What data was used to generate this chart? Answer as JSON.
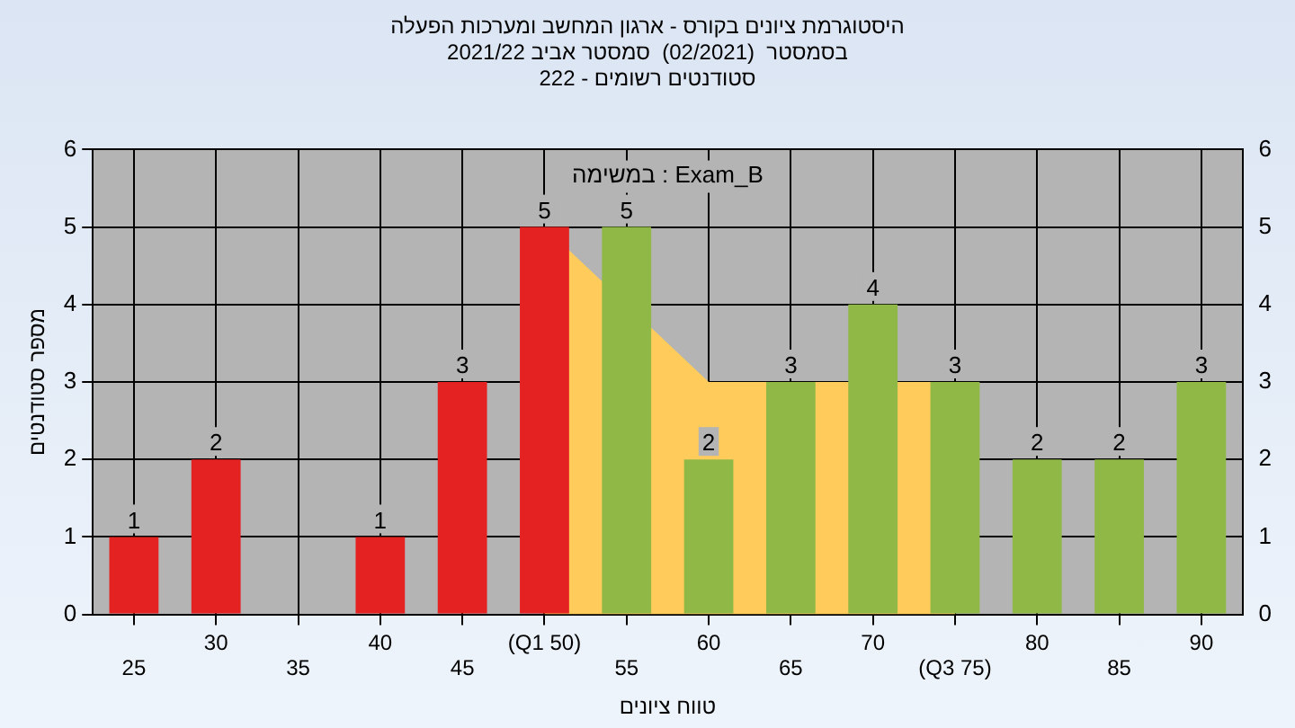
{
  "chart_data": {
    "type": "bar",
    "title": "היסטוגרמת ציונים בקורס - ארגון המחשב ומערכות הפעלה",
    "subtitle": "בסמסטר  (02/2021)  סמסטר אביב 2021/22\nסטודנטים רשומים - 222",
    "xlabel": "טווח ציונים",
    "ylabel": "מספר סטודנטים",
    "annotations": [
      "במשימה : Exam_B"
    ],
    "categories": [
      "25",
      "30",
      "35",
      "40",
      "45",
      "(Q1 50)",
      "55",
      "60",
      "65",
      "70",
      "(Q3 75)",
      "80",
      "85",
      "90"
    ],
    "series": [
      {
        "type": "area",
        "color": "#ffcc5c",
        "values": [
          null,
          null,
          null,
          null,
          null,
          5,
          null,
          3,
          3,
          null,
          3,
          null,
          null,
          null
        ]
      },
      {
        "colors": [
          "#e52222",
          "#e52222",
          "#e52222",
          "#e52222",
          "#e52222",
          "#e52222",
          "#8fb847",
          "#8fb847",
          "#8fb847",
          "#8fb847",
          "#8fb847",
          "#8fb847",
          "#8fb847",
          "#8fb847"
        ],
        "values": [
          1,
          2,
          0,
          1,
          3,
          5,
          5,
          2,
          3,
          4,
          3,
          2,
          2,
          3
        ],
        "value_labels": [
          "1",
          "2",
          null,
          "1",
          "3",
          "5",
          "5",
          "2",
          "3",
          "4",
          "3",
          "2",
          "2",
          "3"
        ]
      }
    ],
    "ylim": [
      0,
      6
    ],
    "yticks": [
      0,
      1,
      2,
      3,
      4,
      5,
      6
    ],
    "y2lim": [
      0,
      6
    ],
    "y2ticks": [
      0,
      1,
      2,
      3,
      4,
      5,
      6
    ],
    "grid": true,
    "legend": false
  }
}
